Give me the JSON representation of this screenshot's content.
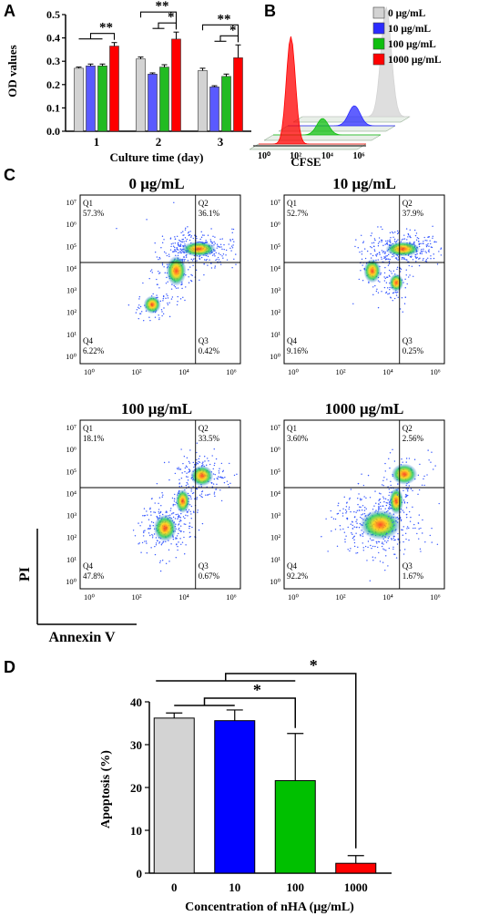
{
  "panel_letters": {
    "a": "A",
    "b": "B",
    "c": "C",
    "d": "D"
  },
  "colors": {
    "c0": "#d3d3d3",
    "c10": "#2b2bff",
    "c100": "#0fbf0f",
    "c1000": "#ff0000"
  },
  "chart_data": [
    {
      "type": "bar",
      "panel": "A",
      "ylabel": "OD values",
      "xlabel": "Culture time (day)",
      "ylim": [
        0.0,
        0.5
      ],
      "yticks": [
        "0.0",
        "0.1",
        "0.2",
        "0.3",
        "0.4",
        "0.5"
      ],
      "categories": [
        "1",
        "2",
        "3"
      ],
      "series": [
        {
          "color": "#d3d3d3",
          "values": [
            0.27,
            0.31,
            0.26
          ],
          "errors": [
            0.005,
            0.008,
            0.01
          ]
        },
        {
          "color": "#5a5aff",
          "values": [
            0.28,
            0.245,
            0.19
          ],
          "errors": [
            0.008,
            0.005,
            0.005
          ]
        },
        {
          "color": "#22bb22",
          "values": [
            0.28,
            0.275,
            0.235
          ],
          "errors": [
            0.008,
            0.01,
            0.01
          ]
        },
        {
          "color": "#ff0000",
          "values": [
            0.365,
            0.395,
            0.315
          ],
          "errors": [
            0.015,
            0.03,
            0.055
          ]
        }
      ],
      "annotations": [
        "**",
        "**",
        "*",
        "**",
        "*"
      ]
    },
    {
      "type": "area",
      "panel": "B",
      "xlabel": "CFSE",
      "xticks": [
        "10⁰",
        "10²",
        "10⁴",
        "10⁶"
      ],
      "legend_position": "right",
      "legend": [
        {
          "label": "0 μg/mL",
          "color": "#d3d3d3"
        },
        {
          "label": "10 μg/mL",
          "color": "#2b2bff"
        },
        {
          "label": "100 μg/mL",
          "color": "#0fbf0f"
        },
        {
          "label": "1000 μg/mL",
          "color": "#ff0000"
        }
      ]
    },
    {
      "type": "scatter",
      "panel": "C",
      "ylabel": "PI",
      "xlabel": "Annexin V",
      "plots": [
        {
          "title": "0 μg/mL",
          "q1": "57.3%",
          "q2": "36.1%",
          "q3": "0.42%",
          "q4": "6.22%"
        },
        {
          "title": "10 μg/mL",
          "q1": "52.7%",
          "q2": "37.9%",
          "q3": "0.25%",
          "q4": "9.16%"
        },
        {
          "title": "100 μg/mL",
          "q1": "18.1%",
          "q2": "33.5%",
          "q3": "0.67%",
          "q4": "47.8%"
        },
        {
          "title": "1000 μg/mL",
          "q1": "3.60%",
          "q2": "2.56%",
          "q3": "1.67%",
          "q4": "92.2%"
        }
      ],
      "quadrant_names": [
        "Q1",
        "Q2",
        "Q3",
        "Q4"
      ],
      "xticks": [
        "10⁰",
        "10²",
        "10⁴",
        "10⁶"
      ],
      "yticks": [
        "10⁰",
        "10¹",
        "10²",
        "10³",
        "10⁴",
        "10⁵",
        "10⁶",
        "10⁷"
      ]
    },
    {
      "type": "bar",
      "panel": "D",
      "ylabel": "Apoptosis (%)",
      "xlabel": "Concentration of nHA (μg/mL)",
      "ylim": [
        0,
        40
      ],
      "yticks": [
        "0",
        "10",
        "20",
        "30",
        "40"
      ],
      "categories": [
        "0",
        "10",
        "100",
        "1000"
      ],
      "values": [
        36.2,
        35.6,
        21.6,
        2.3
      ],
      "errors": [
        1.2,
        2.5,
        11.0,
        1.8
      ],
      "colors": [
        "#d3d3d3",
        "#0000ff",
        "#00c000",
        "#ff0000"
      ],
      "annotations": [
        "*",
        "*"
      ]
    }
  ]
}
